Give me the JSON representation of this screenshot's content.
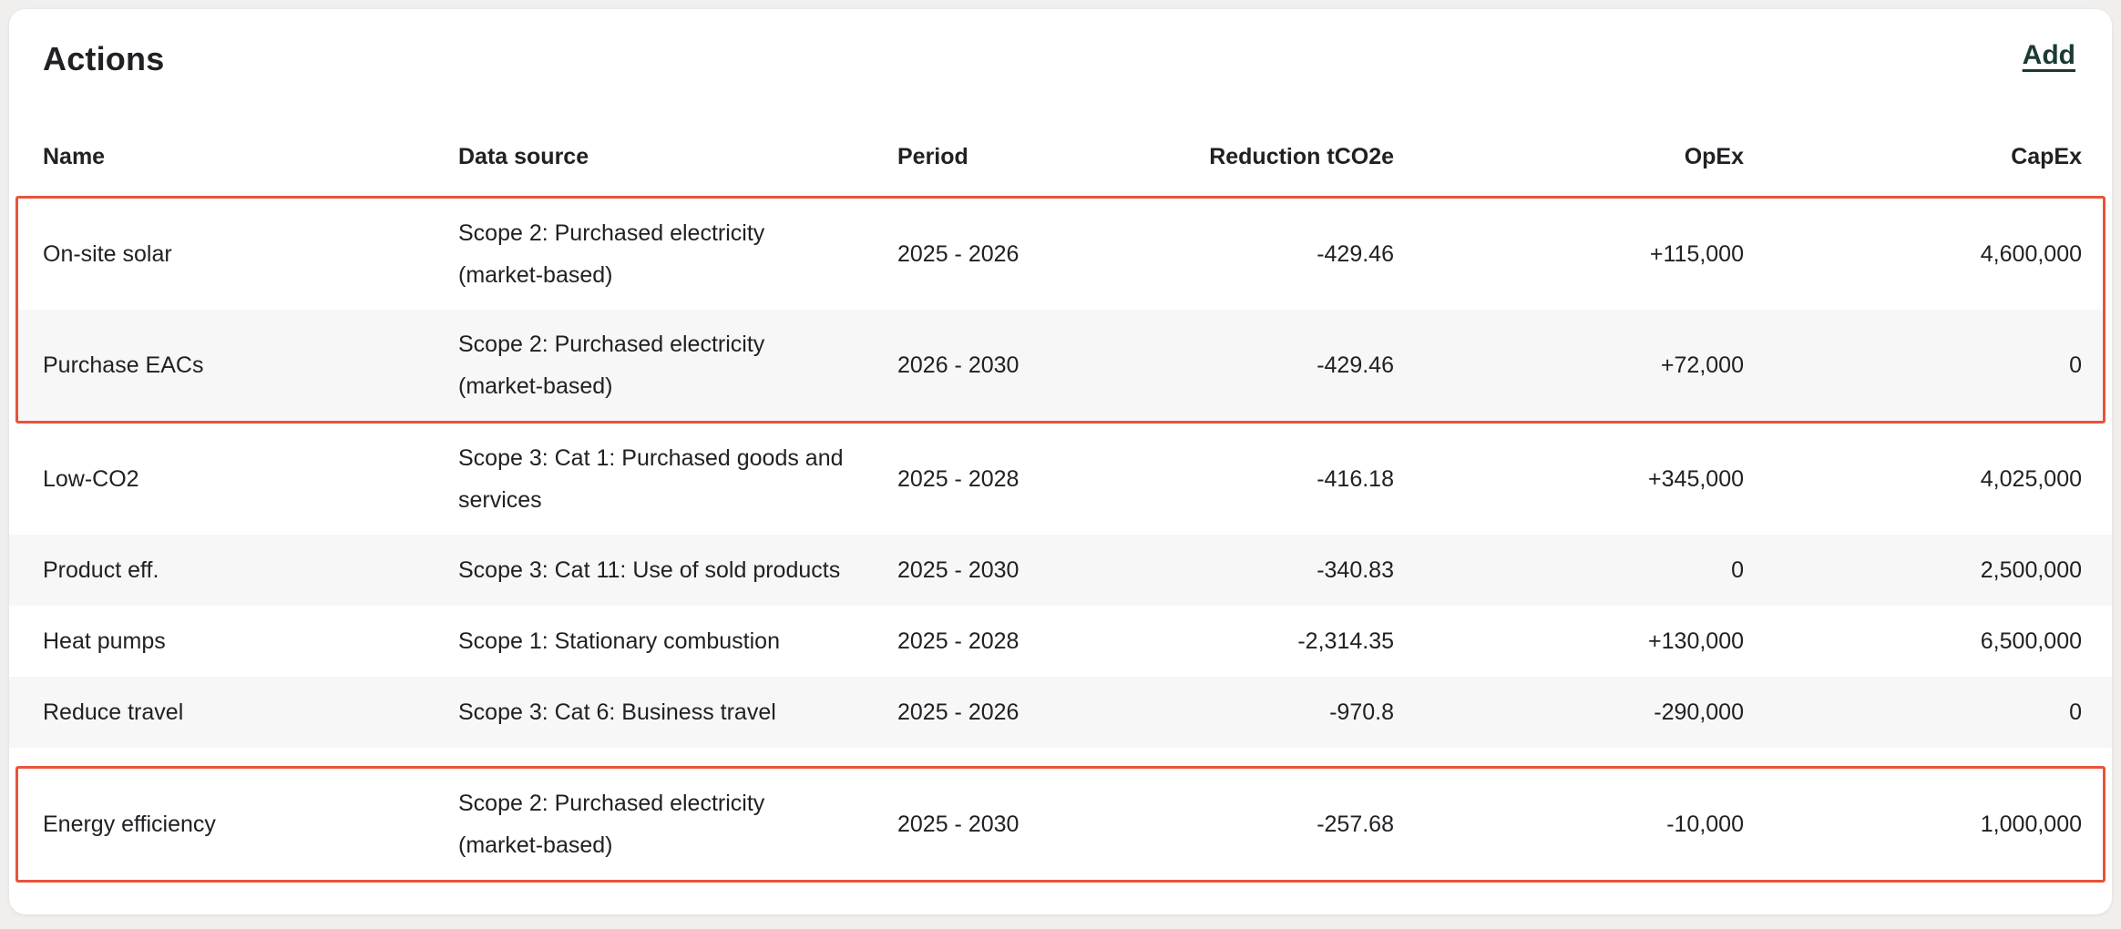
{
  "card": {
    "title": "Actions",
    "add_label": "Add",
    "accent_green": "#1B3A33",
    "highlight_red": "#E8543B",
    "alt_row_color": "#F7F7F7"
  },
  "table": {
    "columns": [
      {
        "label": "Name",
        "align": "left"
      },
      {
        "label": "Data source",
        "align": "left"
      },
      {
        "label": "Period",
        "align": "left"
      },
      {
        "label": "Reduction tCO2e",
        "align": "right"
      },
      {
        "label": "OpEx",
        "align": "right"
      },
      {
        "label": "CapEx",
        "align": "right"
      }
    ],
    "rows": [
      {
        "name": "On-site solar",
        "data_source": "Scope 2: Purchased electricity (market-based)",
        "period": "2025 - 2026",
        "reduction": "-429.46",
        "opex": "+115,000",
        "capex": "4,600,000",
        "highlight_group": 1
      },
      {
        "name": "Purchase EACs",
        "data_source": "Scope 2: Purchased electricity (market-based)",
        "period": "2026 - 2030",
        "reduction": "-429.46",
        "opex": "+72,000",
        "capex": "0",
        "highlight_group": 1
      },
      {
        "name": "Low-CO2",
        "data_source": "Scope 3: Cat 1: Purchased goods and services",
        "period": "2025 - 2028",
        "reduction": "-416.18",
        "opex": "+345,000",
        "capex": "4,025,000",
        "highlight_group": null
      },
      {
        "name": "Product eff.",
        "data_source": "Scope 3: Cat 11: Use of sold products",
        "period": "2025 - 2030",
        "reduction": "-340.83",
        "opex": "0",
        "capex": "2,500,000",
        "highlight_group": null
      },
      {
        "name": "Heat pumps",
        "data_source": "Scope 1: Stationary combustion",
        "period": "2025 - 2028",
        "reduction": "-2,314.35",
        "opex": "+130,000",
        "capex": "6,500,000",
        "highlight_group": null
      },
      {
        "name": "Reduce travel",
        "data_source": "Scope 3: Cat 6: Business travel",
        "period": "2025 - 2026",
        "reduction": "-970.8",
        "opex": "-290,000",
        "capex": "0",
        "highlight_group": null
      },
      {
        "name": "Energy efficiency",
        "data_source": "Scope 2: Purchased electricity (market-based)",
        "period": "2025 - 2030",
        "reduction": "-257.68",
        "opex": "-10,000",
        "capex": "1,000,000",
        "highlight_group": 2
      }
    ]
  }
}
